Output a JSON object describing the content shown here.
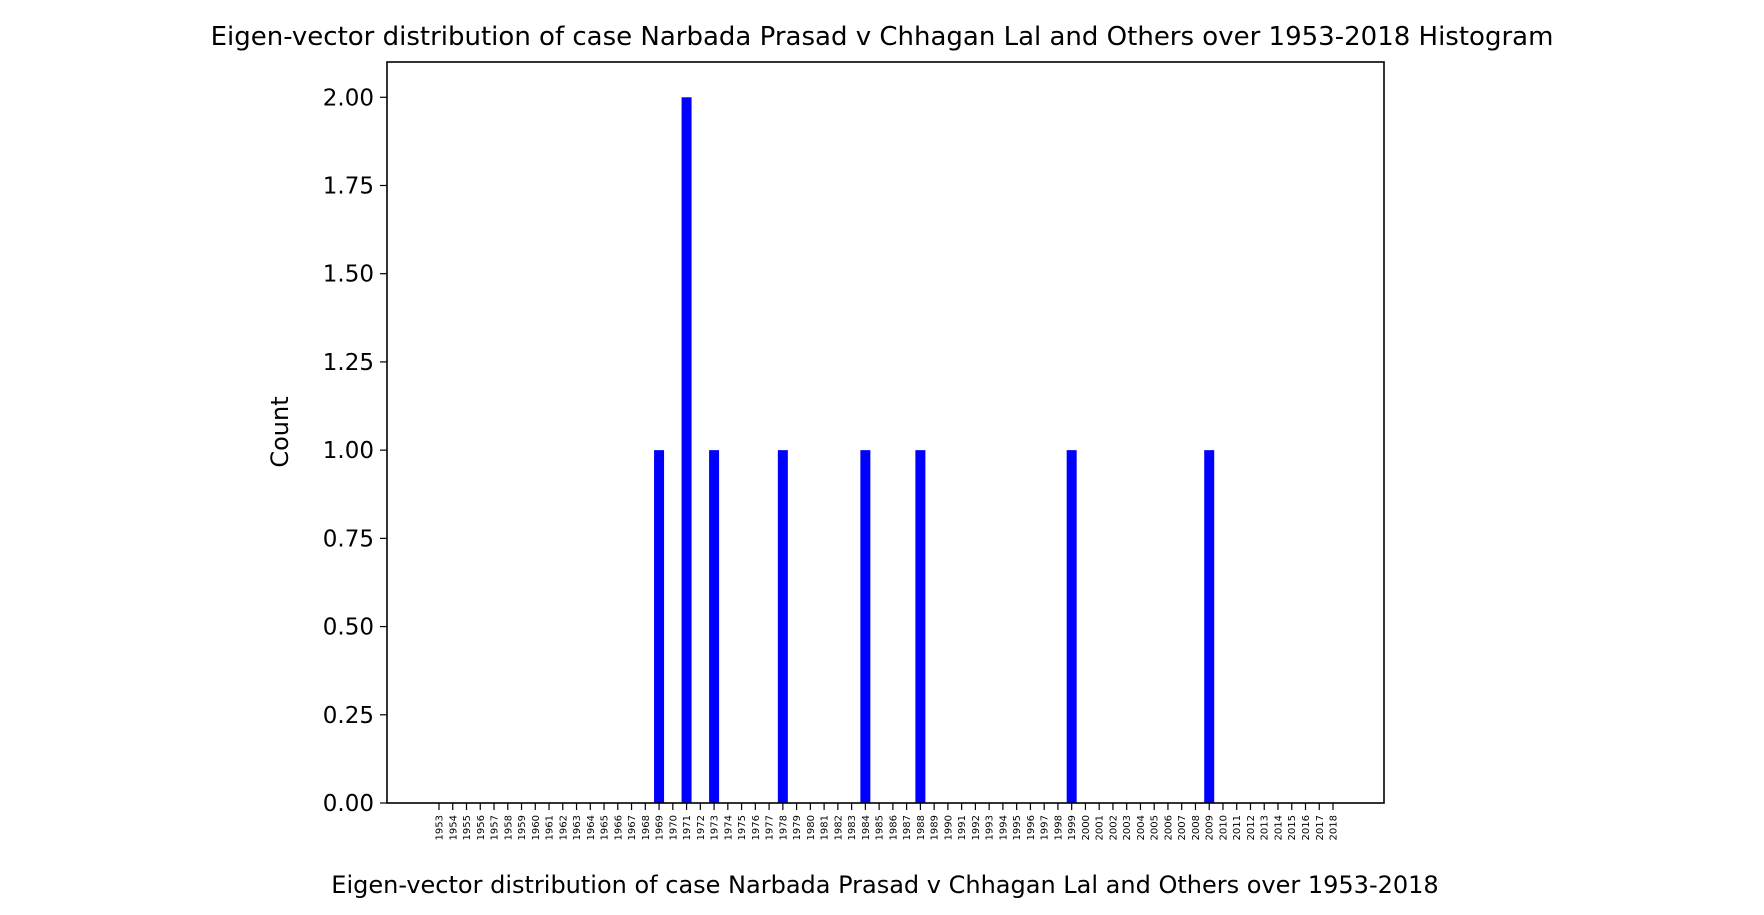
{
  "chart_data": {
    "type": "bar",
    "title": "Eigen-vector distribution of case Narbada Prasad v Chhagan Lal and Others over 1953-2018 Histogram",
    "xlabel": "Eigen-vector distribution of case Narbada Prasad v Chhagan Lal and Others over 1953-2018",
    "ylabel": "Count",
    "ylim": [
      0,
      2.1
    ],
    "yticks": [
      "0.00",
      "0.25",
      "0.50",
      "0.75",
      "1.00",
      "1.25",
      "1.50",
      "1.75",
      "2.00"
    ],
    "categories": [
      "1953",
      "1954",
      "1955",
      "1956",
      "1957",
      "1958",
      "1959",
      "1960",
      "1961",
      "1962",
      "1963",
      "1964",
      "1965",
      "1966",
      "1967",
      "1968",
      "1969",
      "1970",
      "1971",
      "1972",
      "1973",
      "1974",
      "1975",
      "1976",
      "1977",
      "1978",
      "1979",
      "1980",
      "1981",
      "1982",
      "1983",
      "1984",
      "1985",
      "1986",
      "1987",
      "1988",
      "1989",
      "1990",
      "1991",
      "1992",
      "1993",
      "1994",
      "1995",
      "1996",
      "1997",
      "1998",
      "1999",
      "2000",
      "2001",
      "2002",
      "2003",
      "2004",
      "2005",
      "2006",
      "2007",
      "2008",
      "2009",
      "2010",
      "2011",
      "2012",
      "2013",
      "2014",
      "2015",
      "2016",
      "2017",
      "2018"
    ],
    "values": [
      0,
      0,
      0,
      0,
      0,
      0,
      0,
      0,
      0,
      0,
      0,
      0,
      0,
      0,
      0,
      0,
      1,
      0,
      2,
      0,
      1,
      0,
      0,
      0,
      0,
      1,
      0,
      0,
      0,
      0,
      0,
      1,
      0,
      0,
      0,
      1,
      0,
      0,
      0,
      0,
      0,
      0,
      0,
      0,
      0,
      0,
      1,
      0,
      0,
      0,
      0,
      0,
      0,
      0,
      0,
      0,
      1,
      0,
      0,
      0,
      0,
      0,
      0,
      0,
      0,
      0
    ],
    "bar_color": "#0000ff",
    "grid": false,
    "legend": "none"
  }
}
